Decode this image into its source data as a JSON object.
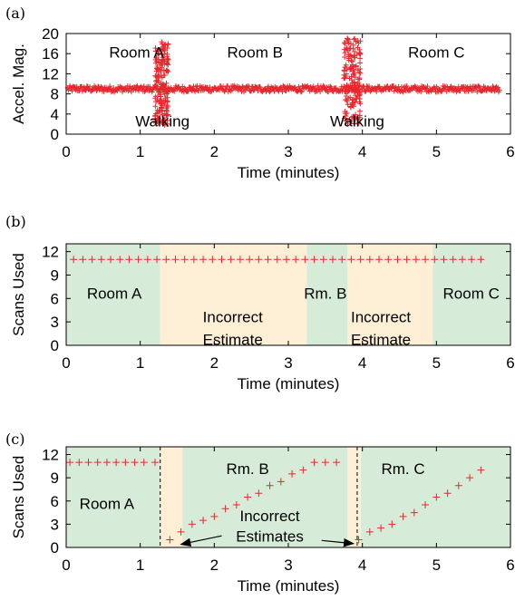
{
  "colors": {
    "series": "#e8262c",
    "room_shade": "#d6ecd8",
    "incorrect_shade": "#fcefd6",
    "axis": "#000000"
  },
  "chart_data": [
    {
      "panel": "(a)",
      "type": "scatter",
      "xlabel": "Time (minutes)",
      "ylabel": "Accel. Mag.",
      "xlim": [
        0,
        6
      ],
      "ylim": [
        0,
        20
      ],
      "xticks": [
        "0",
        "1",
        "2",
        "3",
        "4",
        "5",
        "6"
      ],
      "yticks": [
        "0",
        "4",
        "8",
        "12",
        "16",
        "20"
      ],
      "baseline": 9,
      "noise": 0.6,
      "bursts": [
        {
          "x_start": 1.2,
          "x_end": 1.38,
          "ymin": 1.8,
          "ymax": 18.5
        },
        {
          "x_start": 3.75,
          "x_end": 3.98,
          "ymin": 2,
          "ymax": 19.5
        }
      ],
      "x_range": [
        0.02,
        5.85
      ],
      "annotations": [
        {
          "text": "Room A",
          "x": 0.95,
          "y": 16
        },
        {
          "text": "Room B",
          "x": 2.55,
          "y": 16
        },
        {
          "text": "Room C",
          "x": 5.0,
          "y": 16
        },
        {
          "text": "Walking",
          "x": 1.3,
          "y": 2.3
        },
        {
          "text": "Walking",
          "x": 3.93,
          "y": 2.3
        }
      ]
    },
    {
      "panel": "(b)",
      "type": "scatter",
      "xlabel": "Time (minutes)",
      "ylabel": "Scans Used",
      "xlim": [
        0,
        6
      ],
      "ylim": [
        0,
        13
      ],
      "xticks": [
        "0",
        "1",
        "2",
        "3",
        "4",
        "5",
        "6"
      ],
      "yticks": [
        "0",
        "3",
        "6",
        "9",
        "12"
      ],
      "bands": [
        {
          "x0": 0,
          "x1": 1.27,
          "kind": "room"
        },
        {
          "x0": 1.27,
          "x1": 3.25,
          "kind": "incorrect"
        },
        {
          "x0": 3.25,
          "x1": 3.8,
          "kind": "room"
        },
        {
          "x0": 3.8,
          "x1": 4.95,
          "kind": "incorrect"
        },
        {
          "x0": 4.95,
          "x1": 6,
          "kind": "room"
        }
      ],
      "points": {
        "x_start": 0.1,
        "x_end": 5.7,
        "step": 0.125,
        "y": 11
      },
      "annotations": [
        {
          "text": "Room A",
          "x": 0.65,
          "y": 6.5
        },
        {
          "text": "Incorrect",
          "x": 2.25,
          "y": 3.5
        },
        {
          "text": "Estimate",
          "x": 2.25,
          "y": 0.6
        },
        {
          "text": "Rm. B",
          "x": 3.5,
          "y": 6.5
        },
        {
          "text": "Incorrect",
          "x": 4.25,
          "y": 3.5
        },
        {
          "text": "Estimate",
          "x": 4.25,
          "y": 0.6
        },
        {
          "text": "Room C",
          "x": 5.47,
          "y": 6.5
        }
      ]
    },
    {
      "panel": "(c)",
      "type": "scatter",
      "xlabel": "Time (minutes)",
      "ylabel": "Scans Used",
      "xlim": [
        0,
        6
      ],
      "ylim": [
        0,
        13
      ],
      "xticks": [
        "0",
        "1",
        "2",
        "3",
        "4",
        "5",
        "6"
      ],
      "yticks": [
        "0",
        "3",
        "6",
        "9",
        "12"
      ],
      "bands": [
        {
          "x0": 0,
          "x1": 1.27,
          "kind": "room"
        },
        {
          "x0": 1.27,
          "x1": 1.57,
          "kind": "incorrect"
        },
        {
          "x0": 1.57,
          "x1": 3.8,
          "kind": "room"
        },
        {
          "x0": 3.8,
          "x1": 3.98,
          "kind": "incorrect"
        },
        {
          "x0": 3.98,
          "x1": 6,
          "kind": "room"
        }
      ],
      "dashed_lines": [
        1.27,
        3.93
      ],
      "series": [
        {
          "x": [
            0.05,
            0.175,
            0.3,
            0.425,
            0.55,
            0.675,
            0.8,
            0.925,
            1.05,
            1.2
          ],
          "y": [
            11,
            11,
            11,
            11,
            11,
            11,
            11,
            11,
            11,
            11
          ]
        },
        {
          "x": [
            1.4,
            1.55,
            1.7,
            1.85,
            2.0,
            2.15,
            2.3,
            2.45,
            2.6,
            2.75,
            2.9,
            3.05,
            3.2,
            3.35,
            3.5,
            3.65
          ],
          "y": [
            1,
            2,
            3,
            3.5,
            4,
            5,
            5.5,
            6.5,
            7,
            8,
            8.5,
            9.5,
            10,
            11,
            11,
            11
          ]
        },
        {
          "x": [
            3.95,
            4.1,
            4.25,
            4.4,
            4.55,
            4.7,
            4.85,
            5.0,
            5.15,
            5.3,
            5.45,
            5.6
          ],
          "y": [
            1,
            2,
            2.5,
            3,
            4,
            4.5,
            5.5,
            6.5,
            7,
            8,
            9,
            10
          ]
        }
      ],
      "annotations": [
        {
          "text": "Room A",
          "x": 0.55,
          "y": 5.5
        },
        {
          "text": "Rm. B",
          "x": 2.45,
          "y": 10
        },
        {
          "text": "Rm. C",
          "x": 4.55,
          "y": 10
        },
        {
          "text": "Incorrect",
          "x": 2.75,
          "y": 3.9
        },
        {
          "text": "Estimates",
          "x": 2.75,
          "y": 1.3
        }
      ],
      "arrows": [
        {
          "from": [
            2.1,
            1.5
          ],
          "to": [
            1.55,
            0.4
          ]
        },
        {
          "from": [
            3.45,
            0.9
          ],
          "to": [
            3.88,
            0.5
          ]
        }
      ]
    }
  ]
}
